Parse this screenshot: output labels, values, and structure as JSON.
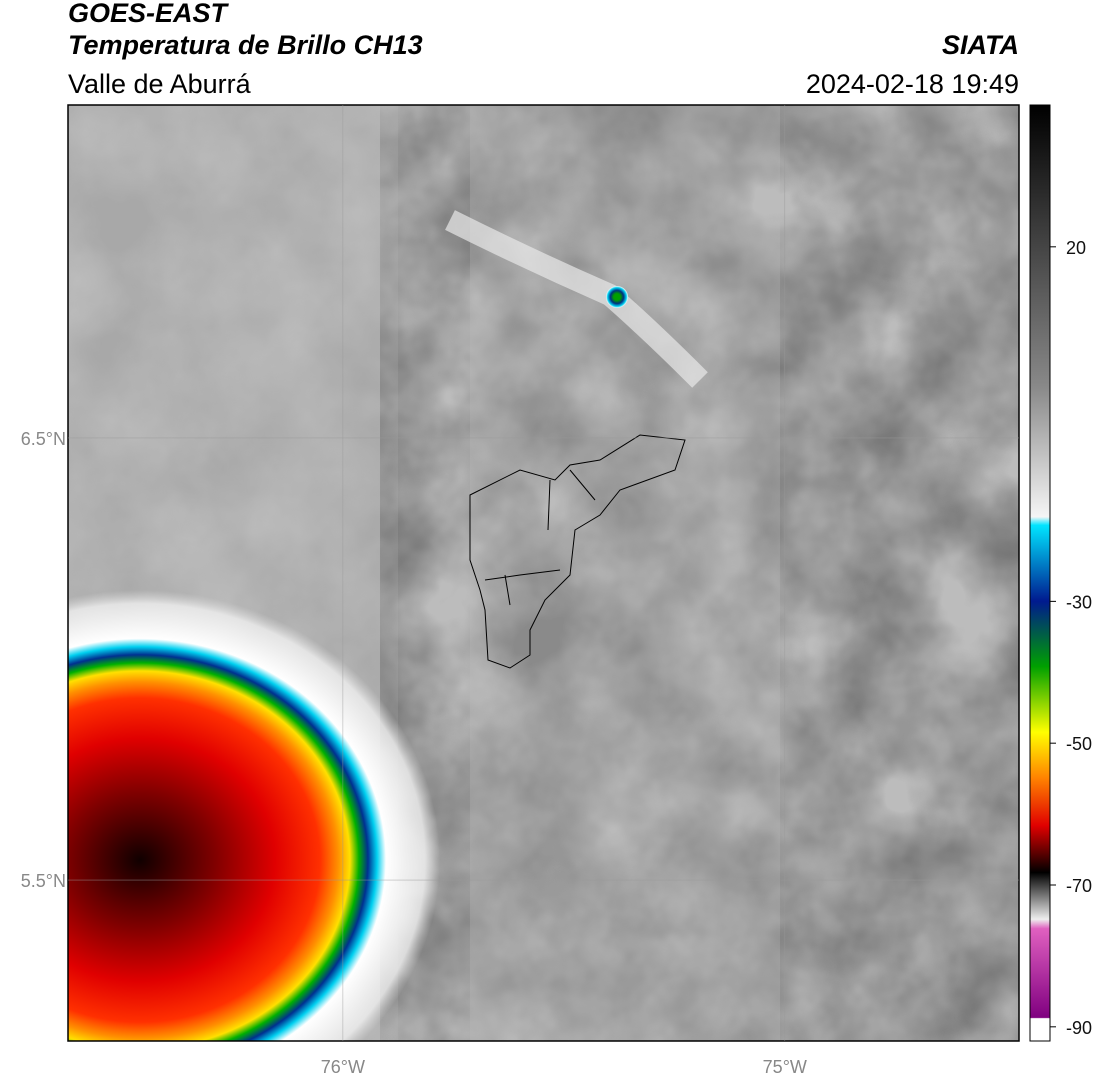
{
  "header": {
    "title": "GOES-EAST",
    "subtitle": "Temperatura de Brillo CH13",
    "region": "Valle de Aburrá",
    "source": "SIATA",
    "datetime": "2024-02-18 19:49"
  },
  "map": {
    "ylim": [
      5.136,
      7.253
    ],
    "xlim": [
      -76.622,
      -74.47
    ],
    "yticks": [
      {
        "value": 6.5,
        "label": "6.5°N"
      },
      {
        "value": 5.5,
        "label": "5.5°N"
      }
    ],
    "xticks": [
      {
        "value": -76,
        "label": "76°W"
      },
      {
        "value": -75,
        "label": "75°W"
      }
    ]
  },
  "colorbar": {
    "lim": [
      -92,
      40
    ],
    "ticks": [
      20,
      -30,
      -50,
      -70,
      -90
    ]
  }
}
